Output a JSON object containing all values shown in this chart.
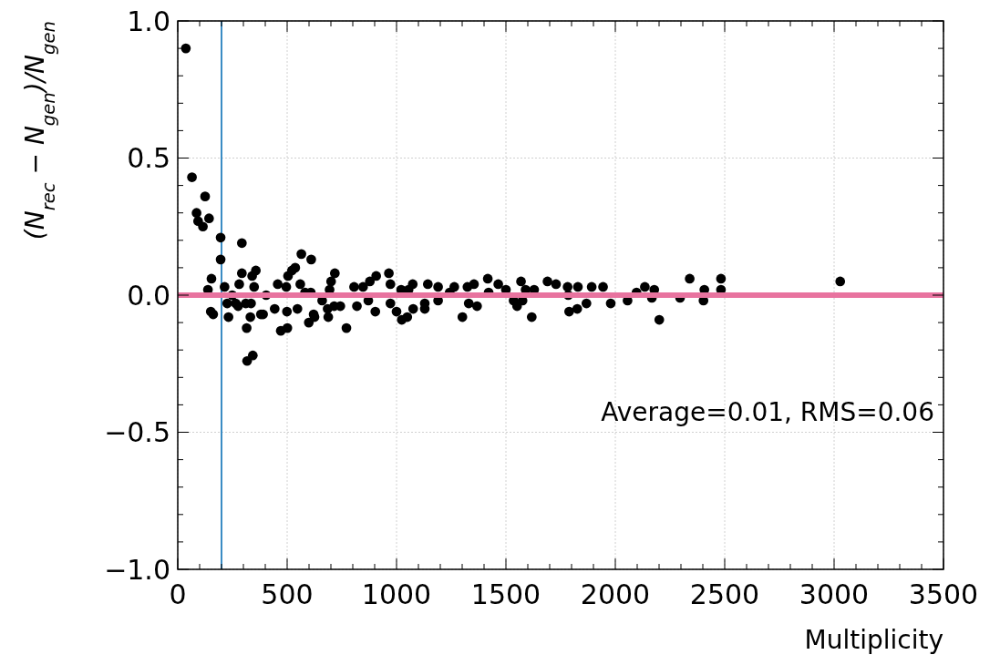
{
  "chart_data": {
    "type": "scatter",
    "xlabel": "Multiplicity",
    "ylabel": "(N$_{rec}$ − N$_{gen}$)/N$_{gen}$",
    "xlim": [
      0,
      3500
    ],
    "xticks": [
      0,
      500,
      1000,
      1500,
      2000,
      2500,
      3000,
      3500
    ],
    "ylim": [
      -1,
      1
    ],
    "yticks": [
      {
        "value": -1,
        "label": "−1.0"
      },
      {
        "value": -0.5,
        "label": "−0.5"
      },
      {
        "value": 0,
        "label": "0.0"
      },
      0.5,
      {
        "value": 1,
        "label": "1.0"
      }
    ],
    "grid": true,
    "marker": "circle",
    "ref_lines": [
      {
        "axis": "x",
        "value": 200,
        "color": "#3a8cc4"
      },
      {
        "axis": "y",
        "value": 0,
        "color": "#e8739f"
      }
    ],
    "annotations": [
      "Average=0.01, RMS=0.06"
    ],
    "series": [
      {
        "color": "#000000",
        "x": [
          37,
          65,
          86,
          93,
          115,
          125,
          143,
          196,
          196,
          293,
          154,
          138,
          151,
          162,
          214,
          226,
          232,
          249,
          265,
          276,
          281,
          293,
          311,
          315,
          317,
          343,
          332,
          340,
          357,
          349,
          335,
          380,
          390,
          404,
          443,
          457,
          471,
          501,
          496,
          499,
          504,
          522,
          537,
          547,
          560,
          565,
          599,
          610,
          621,
          582,
          608,
          625,
          660,
          688,
          685,
          701,
          718,
          694,
          715,
          743,
          771,
          806,
          819,
          847,
          878,
          907,
          903,
          871,
          965,
          972,
          972,
          1000,
          1021,
          1024,
          1049,
          1074,
          1076,
          1055,
          1129,
          1129,
          1143,
          1190,
          1190,
          1243,
          1264,
          1301,
          1324,
          1330,
          1354,
          1368,
          1417,
          1421,
          1465,
          1500,
          1535,
          1551,
          1569,
          1590,
          1618,
          1629,
          1576,
          1690,
          1729,
          1782,
          1785,
          1789,
          1826,
          1829,
          1868,
          1892,
          1944,
          1979,
          2056,
          2097,
          2135,
          2178,
          2167,
          2201,
          2296,
          2340,
          2407,
          2403,
          2483,
          2483,
          3028
        ],
        "values": [
          0.9,
          0.43,
          0.3,
          0.27,
          0.25,
          0.36,
          0.28,
          0.21,
          0.13,
          0.19,
          0.06,
          0.02,
          -0.06,
          -0.07,
          0.03,
          -0.03,
          -0.08,
          0.0,
          -0.03,
          -0.04,
          0.04,
          0.08,
          -0.03,
          -0.12,
          -0.24,
          -0.22,
          -0.08,
          0.07,
          0.09,
          0.03,
          -0.03,
          -0.07,
          -0.07,
          0.0,
          -0.05,
          0.04,
          -0.13,
          -0.12,
          0.03,
          -0.06,
          0.07,
          0.09,
          0.1,
          -0.05,
          0.04,
          0.15,
          -0.1,
          0.13,
          -0.07,
          0.01,
          0.01,
          -0.08,
          -0.02,
          -0.08,
          -0.05,
          0.05,
          0.08,
          0.02,
          -0.04,
          -0.04,
          -0.12,
          0.03,
          -0.04,
          0.03,
          0.05,
          0.07,
          -0.06,
          -0.02,
          0.08,
          0.04,
          -0.03,
          -0.06,
          0.02,
          -0.09,
          -0.08,
          0.04,
          -0.05,
          0.02,
          -0.05,
          -0.03,
          0.04,
          0.03,
          -0.02,
          0.01,
          0.03,
          -0.08,
          0.03,
          -0.03,
          0.04,
          -0.04,
          0.06,
          0.01,
          0.04,
          0.02,
          -0.02,
          -0.04,
          0.05,
          0.02,
          -0.08,
          0.02,
          -0.02,
          0.05,
          0.04,
          0.03,
          0.0,
          -0.06,
          -0.05,
          0.03,
          -0.03,
          0.03,
          0.03,
          -0.03,
          -0.02,
          0.01,
          0.03,
          0.02,
          -0.01,
          -0.09,
          -0.01,
          0.06,
          0.02,
          -0.02,
          0.06,
          0.02,
          0.05
        ]
      }
    ]
  }
}
